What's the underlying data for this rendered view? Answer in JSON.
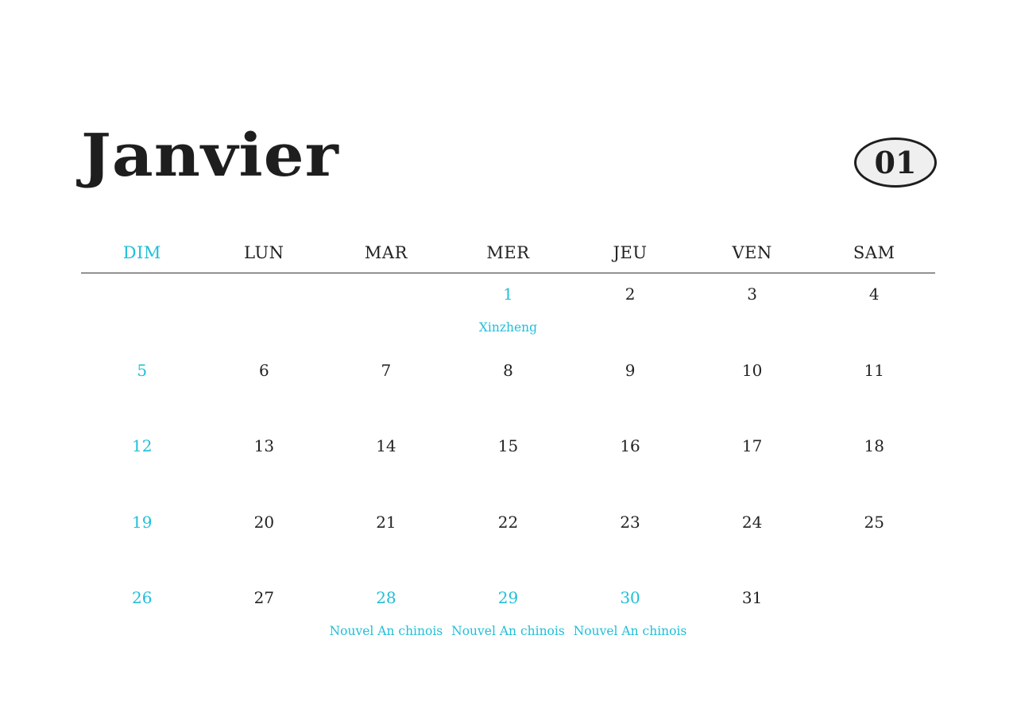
{
  "month_title": "Janvier",
  "month_number": "01",
  "accent_color": "#1fbfd8",
  "weekdays": [
    "DIM",
    "LUN",
    "MAR",
    "MER",
    "JEU",
    "VEN",
    "SAM"
  ],
  "weeks": [
    [
      null,
      null,
      null,
      {
        "day": "1",
        "holiday": "Xinzheng"
      },
      {
        "day": "2"
      },
      {
        "day": "3"
      },
      {
        "day": "4"
      }
    ],
    [
      {
        "day": "5"
      },
      {
        "day": "6"
      },
      {
        "day": "7"
      },
      {
        "day": "8"
      },
      {
        "day": "9"
      },
      {
        "day": "10"
      },
      {
        "day": "11"
      }
    ],
    [
      {
        "day": "12"
      },
      {
        "day": "13"
      },
      {
        "day": "14"
      },
      {
        "day": "15"
      },
      {
        "day": "16"
      },
      {
        "day": "17"
      },
      {
        "day": "18"
      }
    ],
    [
      {
        "day": "19"
      },
      {
        "day": "20"
      },
      {
        "day": "21"
      },
      {
        "day": "22"
      },
      {
        "day": "23"
      },
      {
        "day": "24"
      },
      {
        "day": "25"
      }
    ],
    [
      {
        "day": "26"
      },
      {
        "day": "27"
      },
      {
        "day": "28",
        "holiday": "Nouvel An chinois"
      },
      {
        "day": "29",
        "holiday": "Nouvel An chinois"
      },
      {
        "day": "30",
        "holiday": "Nouvel An chinois"
      },
      {
        "day": "31"
      },
      null
    ]
  ]
}
